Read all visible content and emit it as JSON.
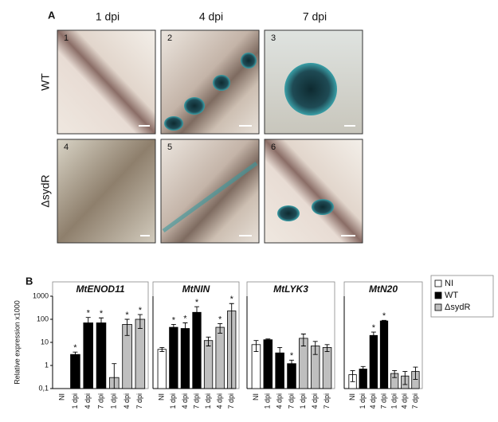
{
  "figure": {
    "panel_a": {
      "label": "A",
      "columns": [
        "1 dpi",
        "4 dpi",
        "7 dpi"
      ],
      "rows": [
        "WT",
        "ΔsydR"
      ],
      "image_numbers": [
        "1",
        "2",
        "3",
        "4",
        "5",
        "6"
      ]
    },
    "panel_b": {
      "label": "B",
      "legend": {
        "position": "right",
        "entries": [
          {
            "name": "NI",
            "color": "#ffffff"
          },
          {
            "name": "WT",
            "color": "#000000"
          },
          {
            "name": "ΔsydR",
            "color": "#bfbfbf"
          }
        ]
      }
    }
  },
  "chart_data": [
    {
      "type": "bar",
      "title": "MtENOD11",
      "y_label": "Relative expression x1000",
      "log_scale": true,
      "ylim": [
        0.1,
        1000
      ],
      "yticks": [
        {
          "value": 0.1,
          "label": "0,1"
        },
        1,
        10,
        100,
        1000
      ],
      "categories": [
        "NI",
        "1 dpi",
        "4 dpi",
        "7 dpi",
        "1 dpi",
        "4 dpi",
        "7 dpi"
      ],
      "values": [
        null,
        3,
        70,
        70,
        0.3,
        60,
        100
      ],
      "errors": [
        null,
        0.8,
        50,
        45,
        0.9,
        40,
        60
      ],
      "colors": [
        "#ffffff",
        "#000000",
        "#000000",
        "#000000",
        "#bfbfbf",
        "#bfbfbf",
        "#bfbfbf"
      ],
      "stars": [
        null,
        "*",
        "*",
        "*",
        null,
        "*",
        "*"
      ]
    },
    {
      "type": "bar",
      "title": "MtNIN",
      "categories": [
        "NI",
        "1 dpi",
        "4 dpi",
        "7 dpi",
        "1 dpi",
        "4 dpi",
        "7 dpi"
      ],
      "values": [
        5,
        45,
        40,
        200,
        12,
        45,
        230
      ],
      "errors": [
        1,
        15,
        30,
        150,
        5,
        20,
        250
      ],
      "colors": [
        "#ffffff",
        "#000000",
        "#000000",
        "#000000",
        "#bfbfbf",
        "#bfbfbf",
        "#bfbfbf"
      ],
      "stars": [
        null,
        "*",
        "*",
        "*",
        null,
        "*",
        "*"
      ]
    },
    {
      "type": "bar",
      "title": "MtLYK3",
      "categories": [
        "NI",
        "1 dpi",
        "4 dpi",
        "7 dpi",
        "1 dpi",
        "4 dpi",
        "7 dpi"
      ],
      "values": [
        8,
        13,
        3.5,
        1.2,
        15,
        7,
        6
      ],
      "errors": [
        4,
        1,
        2.5,
        0.5,
        8,
        4,
        2
      ],
      "colors": [
        "#ffffff",
        "#000000",
        "#000000",
        "#000000",
        "#bfbfbf",
        "#bfbfbf",
        "#bfbfbf"
      ],
      "stars": [
        null,
        null,
        null,
        "*",
        null,
        null,
        null
      ]
    },
    {
      "type": "bar",
      "title": "MtN20",
      "categories": [
        "NI",
        "1 dpi",
        "4 dpi",
        "7 dpi",
        "1 dpi",
        "4 dpi",
        "7 dpi"
      ],
      "values": [
        0.4,
        0.7,
        20,
        85,
        0.45,
        0.35,
        0.55
      ],
      "errors": [
        0.2,
        0.2,
        8,
        5,
        0.15,
        0.2,
        0.3
      ],
      "colors": [
        "#ffffff",
        "#000000",
        "#000000",
        "#000000",
        "#bfbfbf",
        "#bfbfbf",
        "#bfbfbf"
      ],
      "stars": [
        null,
        null,
        "*",
        "*",
        null,
        null,
        null
      ]
    }
  ]
}
